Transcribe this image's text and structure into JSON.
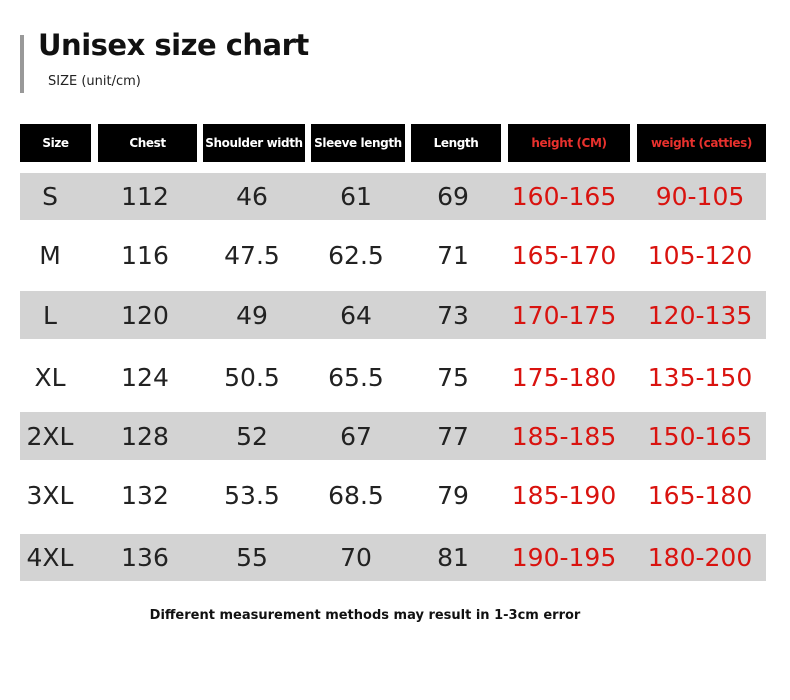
{
  "header": {
    "title": "Unisex size chart",
    "subtitle": "SIZE (unit/cm)"
  },
  "table": {
    "columns": [
      "Size",
      "Chest",
      "Shoulder width",
      "Sleeve length",
      "Length",
      "height (CM)",
      "weight (catties)"
    ],
    "rows": [
      [
        "S",
        "112",
        "46",
        "61",
        "69",
        "160-165",
        "90-105"
      ],
      [
        "M",
        "116",
        "47.5",
        "62.5",
        "71",
        "165-170",
        "105-120"
      ],
      [
        "L",
        "120",
        "49",
        "64",
        "73",
        "170-175",
        "120-135"
      ],
      [
        "XL",
        "124",
        "50.5",
        "65.5",
        "75",
        "175-180",
        "135-150"
      ],
      [
        "2XL",
        "128",
        "52",
        "67",
        "77",
        "185-185",
        "150-165"
      ],
      [
        "3XL",
        "132",
        "53.5",
        "68.5",
        "79",
        "185-190",
        "165-180"
      ],
      [
        "4XL",
        "136",
        "55",
        "70",
        "81",
        "190-195",
        "180-200"
      ]
    ]
  },
  "footer": {
    "note": "Different measurement methods may result in 1-3cm error"
  }
}
